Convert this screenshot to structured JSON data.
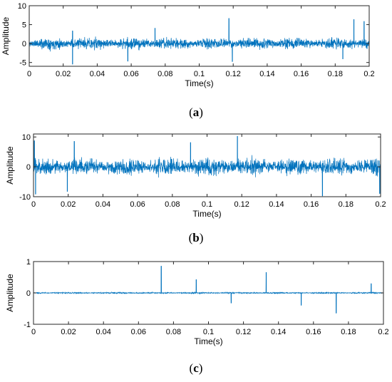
{
  "chart_data": [
    {
      "type": "line",
      "caption": {
        "open": "(",
        "letter": "a",
        "close": ")"
      },
      "xlabel": "Time(s)",
      "ylabel": "Amplitude",
      "xlim": [
        0,
        0.2
      ],
      "ylim": [
        -6,
        10
      ],
      "xticks": [
        0,
        0.02,
        0.04,
        0.06,
        0.08,
        0.1,
        0.12,
        0.14,
        0.16,
        0.18,
        0.2
      ],
      "yticks": [
        -5,
        0,
        5,
        10
      ],
      "grid": false,
      "color": "#0072BD",
      "signal": {
        "n": 2000,
        "noise_amplitude": 1.7,
        "seed": 11
      },
      "peaks": [
        {
          "x": 0.0255,
          "y": -5.5
        },
        {
          "x": 0.0255,
          "y": 3.4
        },
        {
          "x": 0.058,
          "y": -4.7
        },
        {
          "x": 0.074,
          "y": 4.1
        },
        {
          "x": 0.1175,
          "y": 6.7
        },
        {
          "x": 0.1195,
          "y": -4.8
        },
        {
          "x": 0.1845,
          "y": -4.1
        },
        {
          "x": 0.191,
          "y": 6.4
        },
        {
          "x": 0.197,
          "y": 5.9
        }
      ]
    },
    {
      "type": "line",
      "caption": {
        "open": "(",
        "letter": "b",
        "close": ")"
      },
      "xlabel": "Time(s)",
      "ylabel": "Amplitude",
      "xlim": [
        0,
        0.2
      ],
      "ylim": [
        -10,
        11
      ],
      "xticks": [
        0,
        0.02,
        0.04,
        0.06,
        0.08,
        0.1,
        0.12,
        0.14,
        0.16,
        0.18,
        0.2
      ],
      "yticks": [
        -10,
        0,
        10
      ],
      "grid": false,
      "color": "#0072BD",
      "signal": {
        "n": 2000,
        "noise_amplitude": 3.2,
        "seed": 23
      },
      "peaks": [
        {
          "x": 0.0005,
          "y": 8.8
        },
        {
          "x": 0.0012,
          "y": -9.2
        },
        {
          "x": 0.0195,
          "y": -8.3
        },
        {
          "x": 0.0235,
          "y": 8.6
        },
        {
          "x": 0.0905,
          "y": 8.2
        },
        {
          "x": 0.1175,
          "y": 10.3
        },
        {
          "x": 0.1665,
          "y": -9.8
        },
        {
          "x": 0.1995,
          "y": -9.0
        }
      ]
    },
    {
      "type": "line",
      "caption": {
        "open": "(",
        "letter": "c",
        "close": ")"
      },
      "xlabel": "Time(s)",
      "ylabel": "Amplitude",
      "xlim": [
        0,
        0.2
      ],
      "ylim": [
        -1,
        1
      ],
      "xticks": [
        0,
        0.02,
        0.04,
        0.06,
        0.08,
        0.1,
        0.12,
        0.14,
        0.16,
        0.18,
        0.2
      ],
      "yticks": [
        -1,
        0,
        1
      ],
      "grid": false,
      "color": "#0072BD",
      "signal": {
        "n": 2000,
        "noise_amplitude": 0.025,
        "seed": 37
      },
      "peaks": [
        {
          "x": 0.073,
          "y": 0.86
        },
        {
          "x": 0.093,
          "y": 0.43
        },
        {
          "x": 0.113,
          "y": -0.33
        },
        {
          "x": 0.133,
          "y": 0.66
        },
        {
          "x": 0.153,
          "y": -0.4
        },
        {
          "x": 0.173,
          "y": -0.65
        },
        {
          "x": 0.193,
          "y": 0.3
        }
      ]
    }
  ]
}
